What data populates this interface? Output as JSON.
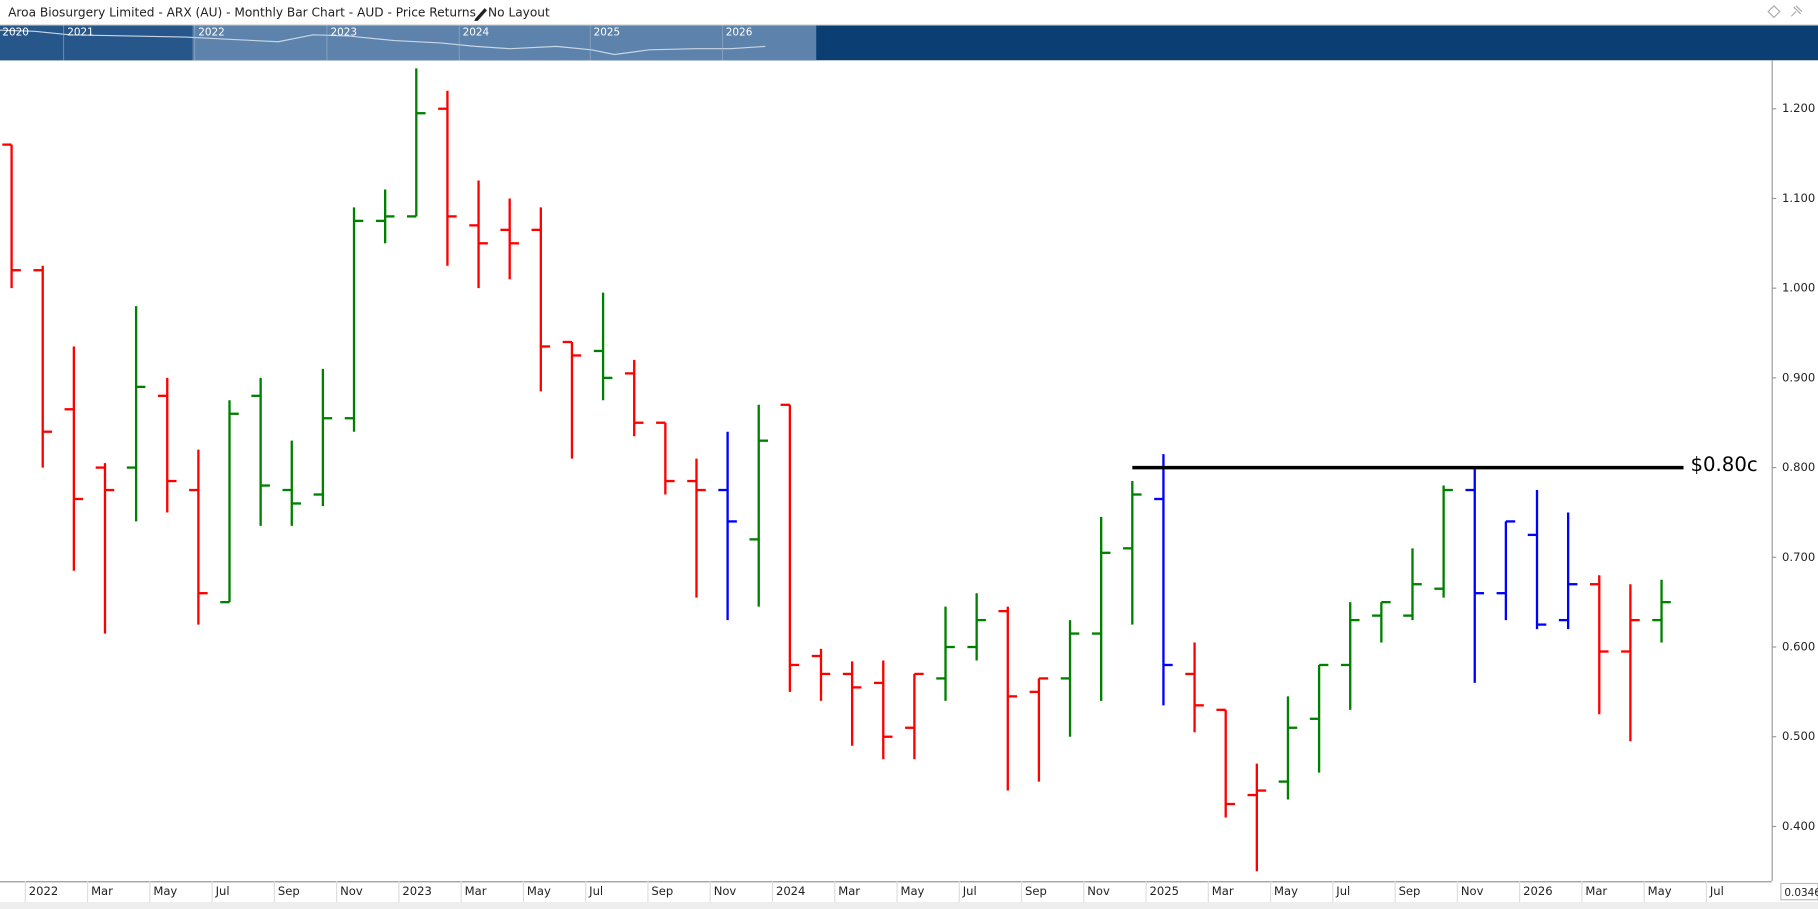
{
  "header": {
    "title": "Aroa Biosurgery Limited - ARX (AU) - Monthly Bar Chart - AUD - Price Returns - No Layout"
  },
  "navigator": {
    "years": [
      "2020",
      "2021",
      "2022",
      "2023",
      "2024",
      "2025",
      "2026"
    ]
  },
  "corner_label": "0.0346",
  "chart_data": {
    "type": "ohlc",
    "categories": [
      null,
      "2022",
      null,
      "Mar",
      null,
      "May",
      null,
      "Jul",
      null,
      "Sep",
      null,
      "Nov",
      null,
      "2023",
      null,
      "Mar",
      null,
      "May",
      null,
      "Jul",
      null,
      "Sep",
      null,
      "Nov",
      null,
      "2024",
      null,
      "Mar",
      null,
      "May",
      null,
      "Jul",
      null,
      "Sep",
      null,
      "Nov",
      null,
      "2025",
      null,
      "Mar",
      null,
      "May",
      null,
      "Jul",
      null,
      "Sep",
      null,
      "Nov",
      null,
      "2026",
      null,
      "Mar",
      null,
      "May",
      null,
      "Jul"
    ],
    "open": [
      1.16,
      1.02,
      0.865,
      0.8,
      0.8,
      0.88,
      0.775,
      0.65,
      0.88,
      0.775,
      0.77,
      0.855,
      1.075,
      1.08,
      1.2,
      1.07,
      1.065,
      1.065,
      0.94,
      0.93,
      0.905,
      0.85,
      0.785,
      0.775,
      0.72,
      0.87,
      0.59,
      0.57,
      0.56,
      0.51,
      0.565,
      0.6,
      0.64,
      0.55,
      0.565,
      0.615,
      0.71,
      0.765,
      0.57,
      0.53,
      0.435,
      0.45,
      0.52,
      0.58,
      0.635,
      0.635,
      0.665,
      0.775,
      0.66,
      0.725,
      0.63,
      0.67,
      0.595,
      0.63,
      null,
      null
    ],
    "high": [
      1.16,
      1.025,
      0.935,
      0.805,
      0.98,
      0.9,
      0.82,
      0.875,
      0.9,
      0.83,
      0.91,
      1.09,
      1.11,
      1.245,
      1.22,
      1.12,
      1.1,
      1.09,
      0.94,
      0.995,
      0.92,
      0.85,
      0.81,
      0.84,
      0.87,
      0.87,
      0.598,
      0.584,
      0.585,
      0.57,
      0.645,
      0.66,
      0.645,
      0.565,
      0.63,
      0.745,
      0.785,
      0.815,
      0.605,
      0.53,
      0.47,
      0.545,
      0.58,
      0.65,
      0.65,
      0.71,
      0.78,
      0.8,
      0.74,
      0.775,
      0.75,
      0.68,
      0.67,
      0.675,
      null,
      null
    ],
    "low": [
      1.0,
      0.8,
      0.685,
      0.615,
      0.74,
      0.75,
      0.625,
      0.65,
      0.735,
      0.735,
      0.757,
      0.84,
      1.05,
      1.08,
      1.025,
      1.0,
      1.01,
      0.885,
      0.81,
      0.875,
      0.835,
      0.77,
      0.655,
      0.63,
      0.645,
      0.55,
      0.54,
      0.49,
      0.475,
      0.475,
      0.54,
      0.585,
      0.44,
      0.45,
      0.5,
      0.54,
      0.625,
      0.535,
      0.505,
      0.41,
      0.35,
      0.43,
      0.46,
      0.53,
      0.605,
      0.63,
      0.655,
      0.56,
      0.63,
      0.62,
      0.62,
      0.525,
      0.495,
      0.605,
      null,
      null
    ],
    "close": [
      1.02,
      0.84,
      0.765,
      0.775,
      0.89,
      0.785,
      0.66,
      0.86,
      0.78,
      0.76,
      0.855,
      1.075,
      1.08,
      1.195,
      1.08,
      1.05,
      1.05,
      0.935,
      0.925,
      0.9,
      0.85,
      0.785,
      0.775,
      0.74,
      0.83,
      0.58,
      0.57,
      0.555,
      0.5,
      0.57,
      0.6,
      0.63,
      0.545,
      0.565,
      0.615,
      0.705,
      0.77,
      0.58,
      0.535,
      0.425,
      0.44,
      0.51,
      0.58,
      0.63,
      0.65,
      0.67,
      0.775,
      0.66,
      0.74,
      0.625,
      0.67,
      0.595,
      0.63,
      0.65,
      null,
      null
    ],
    "colors": [
      "#ff0000",
      "#ff0000",
      "#ff0000",
      "#ff0000",
      "#008000",
      "#ff0000",
      "#ff0000",
      "#008000",
      "#008000",
      "#008000",
      "#008000",
      "#008000",
      "#008000",
      "#008000",
      "#ff0000",
      "#ff0000",
      "#ff0000",
      "#ff0000",
      "#ff0000",
      "#008000",
      "#ff0000",
      "#ff0000",
      "#ff0000",
      "#0000ff",
      "#008000",
      "#ff0000",
      "#ff0000",
      "#ff0000",
      "#ff0000",
      "#ff0000",
      "#008000",
      "#008000",
      "#ff0000",
      "#ff0000",
      "#008000",
      "#008000",
      "#008000",
      "#0000ff",
      "#ff0000",
      "#ff0000",
      "#ff0000",
      "#008000",
      "#008000",
      "#008000",
      "#008000",
      "#008000",
      "#008000",
      "#0000ff",
      "#0000ff",
      "#0000ff",
      "#0000ff",
      "#ff0000",
      "#ff0000",
      "#008000",
      null,
      null
    ],
    "ylim": [
      0.339,
      1.254
    ],
    "yticks": [
      {
        "value": 0.4,
        "label": "0.400"
      },
      {
        "value": 0.5,
        "label": "0.500"
      },
      {
        "value": 0.6,
        "label": "0.600"
      },
      {
        "value": 0.7,
        "label": "0.700"
      },
      {
        "value": 0.8,
        "label": "0.800"
      },
      {
        "value": 0.9,
        "label": "0.900"
      },
      {
        "value": 1.0,
        "label": "1.000"
      },
      {
        "value": 1.1,
        "label": "1.100"
      },
      {
        "value": 1.2,
        "label": "1.200"
      }
    ],
    "hline": {
      "value": 0.8,
      "label": "$0.80c",
      "color": "#000000"
    }
  }
}
